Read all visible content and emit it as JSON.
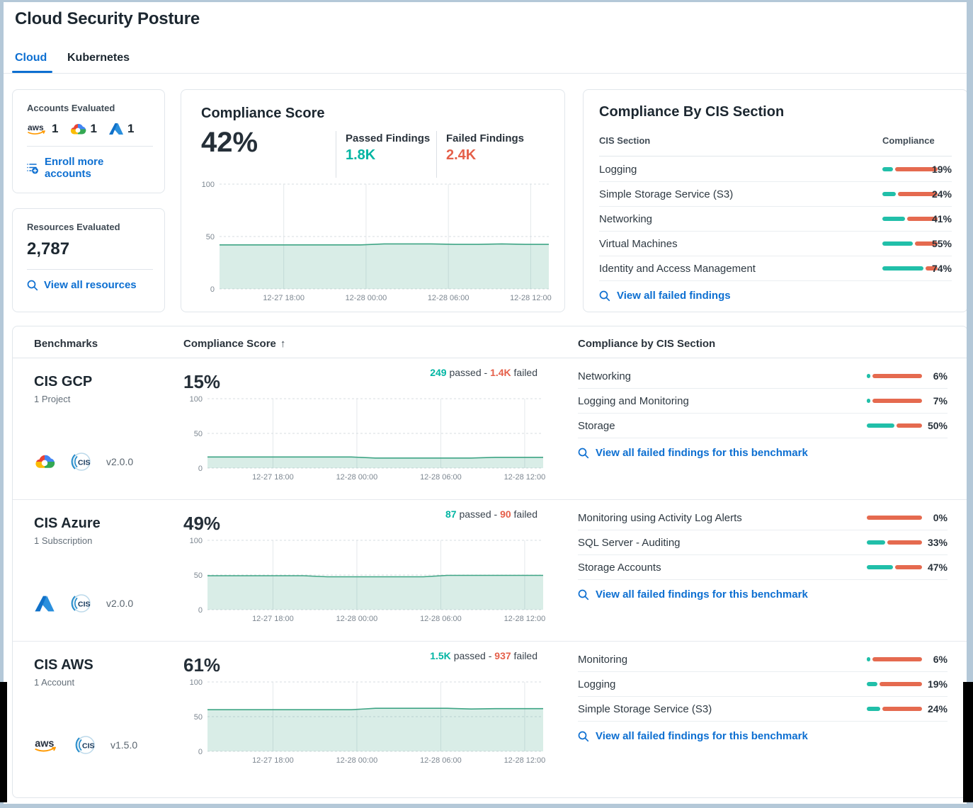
{
  "window": {
    "title": "Cloud Security Posture"
  },
  "tabs": {
    "cloud": "Cloud",
    "kubernetes": "Kubernetes"
  },
  "colors": {
    "accent_blue": "#0d6fd1",
    "pass_teal": "#21bfa9",
    "fail_orange": "#e56a4f",
    "chart_line": "#3fa585",
    "chart_fill": "rgba(63,165,133,0.20)"
  },
  "accounts_card": {
    "title": "Accounts Evaluated",
    "providers": [
      {
        "name": "aws",
        "count": "1"
      },
      {
        "name": "gcp",
        "count": "1"
      },
      {
        "name": "azure",
        "count": "1"
      }
    ],
    "link": "Enroll more accounts"
  },
  "resources_card": {
    "title": "Resources Evaluated",
    "value": "2,787",
    "link": "View all resources"
  },
  "compliance_card": {
    "title": "Compliance Score",
    "score": "42%",
    "passed_label": "Passed Findings",
    "passed_value": "1.8K",
    "failed_label": "Failed Findings",
    "failed_value": "2.4K"
  },
  "cis_card": {
    "title": "Compliance By CIS Section",
    "col_section": "CIS Section",
    "col_compliance": "Compliance",
    "rows": [
      {
        "name": "Logging",
        "pct": 19,
        "label": "19%"
      },
      {
        "name": "Simple Storage Service (S3)",
        "pct": 24,
        "label": "24%"
      },
      {
        "name": "Networking",
        "pct": 41,
        "label": "41%"
      },
      {
        "name": "Virtual Machines",
        "pct": 55,
        "label": "55%"
      },
      {
        "name": "Identity and Access Management",
        "pct": 74,
        "label": "74%"
      }
    ],
    "link": "View all failed findings"
  },
  "bench_table": {
    "col_benchmarks": "Benchmarks",
    "col_score": "Compliance Score",
    "sort_arrow": "↑",
    "col_sections": "Compliance by CIS Section",
    "link": "View all failed findings for this benchmark",
    "rows": [
      {
        "name": "CIS GCP",
        "subtitle": "1 Project",
        "provider": "gcp",
        "version": "v2.0.0",
        "score": "15%",
        "passed": "249",
        "passed_word": "passed - ",
        "failed": "1.4K",
        "failed_word": "failed",
        "sections": [
          {
            "name": "Networking",
            "pct": 6,
            "label": "6%"
          },
          {
            "name": "Logging and Monitoring",
            "pct": 7,
            "label": "7%"
          },
          {
            "name": "Storage",
            "pct": 50,
            "label": "50%"
          }
        ]
      },
      {
        "name": "CIS Azure",
        "subtitle": "1 Subscription",
        "provider": "azure",
        "version": "v2.0.0",
        "score": "49%",
        "passed": "87",
        "passed_word": "passed - ",
        "failed": "90",
        "failed_word": "failed",
        "sections": [
          {
            "name": "Monitoring using Activity Log Alerts",
            "pct": 0,
            "label": "0%"
          },
          {
            "name": "SQL Server - Auditing",
            "pct": 33,
            "label": "33%"
          },
          {
            "name": "Storage Accounts",
            "pct": 47,
            "label": "47%"
          }
        ]
      },
      {
        "name": "CIS AWS",
        "subtitle": "1 Account",
        "provider": "aws",
        "version": "v1.5.0",
        "score": "61%",
        "passed": "1.5K",
        "passed_word": "passed - ",
        "failed": "937",
        "failed_word": "failed",
        "sections": [
          {
            "name": "Monitoring",
            "pct": 6,
            "label": "6%"
          },
          {
            "name": "Logging",
            "pct": 19,
            "label": "19%"
          },
          {
            "name": "Simple Storage Service (S3)",
            "pct": 24,
            "label": "24%"
          }
        ]
      }
    ]
  },
  "chart_data": [
    {
      "id": "overall",
      "type": "area",
      "title": "Compliance Score over time",
      "current_value_pct": 42,
      "x_ticks": [
        "12-27 18:00",
        "12-28 00:00",
        "12-28 06:00",
        "12-28 12:00"
      ],
      "yticks": [
        0,
        50,
        100
      ],
      "ylim": [
        0,
        100
      ],
      "grid": true,
      "legend": "none",
      "values": [
        42,
        42,
        42,
        42,
        42,
        42,
        42,
        43,
        43,
        43,
        42.5,
        42.5,
        43,
        42.5,
        42.5
      ]
    },
    {
      "id": "cis-gcp",
      "type": "area",
      "title": "CIS GCP compliance score over time",
      "current_value_pct": 15,
      "x_ticks": [
        "12-27 18:00",
        "12-28 00:00",
        "12-28 06:00",
        "12-28 12:00"
      ],
      "yticks": [
        0,
        50,
        100
      ],
      "ylim": [
        0,
        100
      ],
      "grid": true,
      "legend": "none",
      "values": [
        16,
        16,
        16,
        16,
        16,
        16,
        16,
        14.5,
        14.5,
        14.5,
        14.5,
        14.5,
        15.5,
        15.5,
        15.5
      ]
    },
    {
      "id": "cis-azure",
      "type": "area",
      "title": "CIS Azure compliance score over time",
      "current_value_pct": 49,
      "x_ticks": [
        "12-27 18:00",
        "12-28 00:00",
        "12-28 06:00",
        "12-28 12:00"
      ],
      "yticks": [
        0,
        50,
        100
      ],
      "ylim": [
        0,
        100
      ],
      "grid": true,
      "legend": "none",
      "values": [
        49,
        49,
        49,
        49,
        49,
        47.5,
        47.5,
        47.5,
        47.5,
        47.5,
        49.5,
        49.5,
        49.5,
        49.5,
        49.5
      ]
    },
    {
      "id": "cis-aws",
      "type": "area",
      "title": "CIS AWS compliance score over time",
      "current_value_pct": 61,
      "x_ticks": [
        "12-27 18:00",
        "12-28 00:00",
        "12-28 06:00",
        "12-28 12:00"
      ],
      "yticks": [
        0,
        50,
        100
      ],
      "ylim": [
        0,
        100
      ],
      "grid": true,
      "legend": "none",
      "values": [
        60,
        60,
        60,
        60,
        60,
        60,
        60,
        62,
        62,
        62,
        62,
        61,
        61.5,
        61.5,
        61.5
      ]
    }
  ]
}
